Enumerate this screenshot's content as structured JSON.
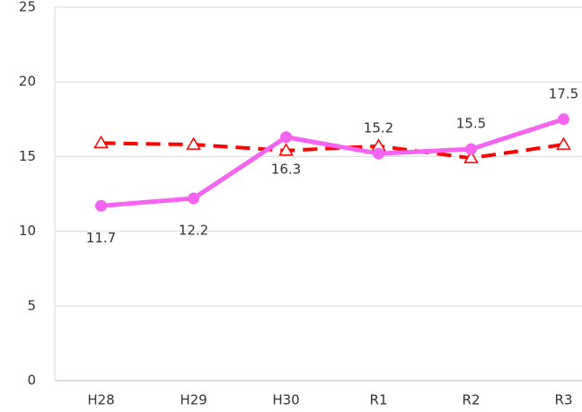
{
  "chart_data": {
    "type": "line",
    "categories": [
      "H28",
      "H29",
      "H30",
      "R1",
      "R2",
      "R3"
    ],
    "series": [
      {
        "color": "#ff0000",
        "dashed": true,
        "marker": "triangle",
        "values": [
          15.9,
          15.8,
          15.4,
          15.7,
          14.9,
          15.8
        ]
      },
      {
        "color": "#f464f0",
        "marker": "circle",
        "values": [
          11.7,
          12.2,
          16.3,
          15.2,
          15.5,
          17.5
        ],
        "show_labels": true
      }
    ],
    "ylim": [
      0,
      25
    ],
    "yticks": [
      0,
      5,
      10,
      15,
      20,
      25
    ],
    "grid": true
  }
}
